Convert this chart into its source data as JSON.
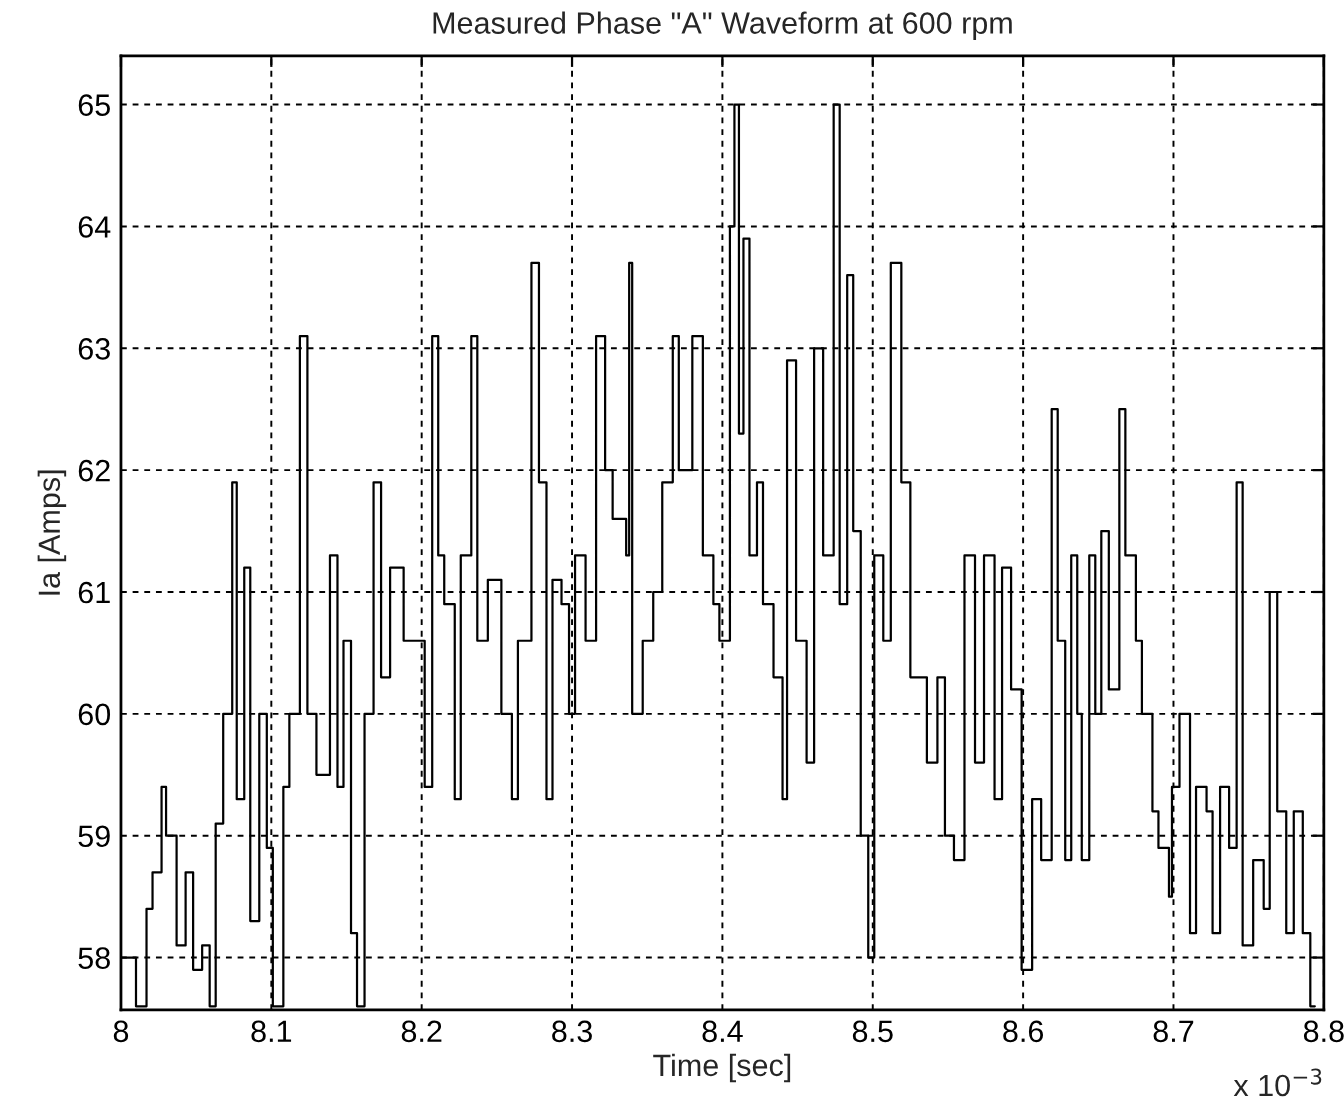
{
  "chart_data": {
    "type": "step",
    "title": "Measured Phase \"A\" Waveform at 600 rpm",
    "xlabel": "Time [sec]",
    "ylabel": "Ia [Amps]",
    "annotations": [
      "x 10$^{−3}$"
    ],
    "xlim": [
      8,
      8.8
    ],
    "xticks": [
      8,
      8.1,
      8.2,
      8.3,
      8.4,
      8.5,
      8.6,
      8.7,
      8.8
    ],
    "ylim": [
      57.57,
      65.4
    ],
    "yticks": [
      58,
      59,
      60,
      61,
      62,
      63,
      64,
      65
    ],
    "grid": true,
    "line_style": "solid",
    "marker": "none",
    "series": [
      {
        "color": "#000000",
        "x": [
          8.0,
          8.01,
          8.017,
          8.021,
          8.027,
          8.03,
          8.037,
          8.043,
          8.048,
          8.054,
          8.059,
          8.063,
          8.068,
          8.074,
          8.077,
          8.082,
          8.086,
          8.092,
          8.097,
          8.101,
          8.108,
          8.112,
          8.119,
          8.124,
          8.13,
          8.139,
          8.144,
          8.148,
          8.153,
          8.157,
          8.162,
          8.168,
          8.173,
          8.179,
          8.188,
          8.202,
          8.207,
          8.211,
          8.215,
          8.222,
          8.226,
          8.233,
          8.237,
          8.244,
          8.253,
          8.26,
          8.264,
          8.273,
          8.278,
          8.283,
          8.287,
          8.293,
          8.298,
          8.302,
          8.309,
          8.316,
          8.322,
          8.327,
          8.336,
          8.338,
          8.34,
          8.347,
          8.354,
          8.36,
          8.367,
          8.371,
          8.38,
          8.387,
          8.394,
          8.398,
          8.405,
          8.408,
          8.411,
          8.414,
          8.418,
          8.423,
          8.427,
          8.434,
          8.44,
          8.443,
          8.449,
          8.456,
          8.461,
          8.467,
          8.474,
          8.478,
          8.483,
          8.487,
          8.492,
          8.497,
          8.501,
          8.507,
          8.512,
          8.519,
          8.525,
          8.536,
          8.543,
          8.548,
          8.554,
          8.561,
          8.568,
          8.574,
          8.581,
          8.586,
          8.592,
          8.599,
          8.606,
          8.612,
          8.619,
          8.623,
          8.628,
          8.632,
          8.636,
          8.639,
          8.644,
          8.648,
          8.652,
          8.657,
          8.664,
          8.668,
          8.675,
          8.679,
          8.686,
          8.69,
          8.697,
          8.699,
          8.704,
          8.711,
          8.715,
          8.722,
          8.726,
          8.731,
          8.737,
          8.742,
          8.746,
          8.753,
          8.76,
          8.764,
          8.769,
          8.775,
          8.78,
          8.786,
          8.791,
          8.794
        ],
        "values": [
          58.0,
          57.6,
          58.4,
          58.7,
          59.4,
          59.0,
          58.1,
          58.7,
          57.9,
          58.1,
          57.6,
          59.1,
          60.0,
          61.9,
          59.3,
          61.2,
          58.3,
          60.0,
          58.9,
          57.6,
          59.4,
          60.0,
          63.1,
          60.0,
          59.5,
          61.3,
          59.4,
          60.6,
          58.2,
          57.6,
          60.0,
          61.9,
          60.3,
          61.2,
          60.6,
          59.4,
          63.1,
          61.3,
          60.9,
          59.3,
          61.3,
          63.1,
          60.6,
          61.1,
          60.0,
          59.3,
          60.6,
          63.7,
          61.9,
          59.3,
          61.1,
          60.9,
          60.0,
          61.3,
          60.6,
          63.1,
          62.0,
          61.6,
          61.3,
          63.7,
          60.0,
          60.6,
          61.0,
          61.9,
          63.1,
          62.0,
          63.1,
          61.3,
          60.9,
          60.6,
          64.0,
          65.0,
          62.3,
          63.9,
          61.3,
          61.9,
          60.9,
          60.3,
          59.3,
          62.9,
          60.6,
          59.6,
          63.0,
          61.3,
          65.0,
          60.9,
          63.6,
          61.5,
          59.0,
          58.0,
          61.3,
          60.6,
          63.7,
          61.9,
          60.3,
          59.6,
          60.3,
          59.0,
          58.8,
          61.3,
          59.6,
          61.3,
          59.3,
          61.2,
          60.2,
          57.9,
          59.3,
          58.8,
          62.5,
          60.6,
          58.8,
          61.3,
          60.0,
          58.8,
          61.3,
          60.0,
          61.5,
          60.2,
          62.5,
          61.3,
          60.6,
          60.0,
          59.2,
          58.9,
          58.5,
          59.4,
          60.0,
          58.2,
          59.4,
          59.2,
          58.2,
          59.4,
          58.9,
          61.9,
          58.1,
          58.8,
          58.4,
          61.0,
          59.2,
          58.2,
          59.2,
          58.2,
          57.6,
          57.6
        ]
      }
    ]
  }
}
